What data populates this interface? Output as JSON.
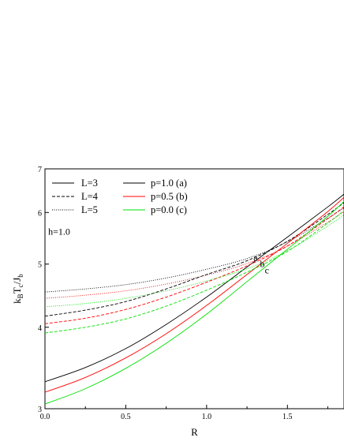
{
  "chart_data": {
    "type": "line",
    "title": "",
    "xlabel": "R",
    "ylabel": "kBTc/Jb",
    "ylabel_parts": {
      "k": "k",
      "ksub": "B",
      "t": "T",
      "tsub": "c",
      "slash": "/J",
      "jsub": "b"
    },
    "xlim": [
      0.0,
      1.85
    ],
    "ylim": [
      3,
      7
    ],
    "y_scale": "log",
    "x_ticks": [
      0.0,
      0.5,
      1.0,
      1.5
    ],
    "x_tick_labels": [
      "0.0",
      "0.5",
      "1.0",
      "1.5"
    ],
    "y_ticks": [
      3,
      4,
      5,
      6,
      7
    ],
    "y_tick_labels": [
      "3",
      "4",
      "5",
      "6",
      "7"
    ],
    "grid": false,
    "legend": {
      "placement": "top-left",
      "size_entries": [
        {
          "label": "L=3",
          "dash": "solid"
        },
        {
          "label": "L=4",
          "dash": "dashed"
        },
        {
          "label": "L=5",
          "dash": "dotted"
        }
      ],
      "p_entries": [
        {
          "label": "p=1.0 (a)",
          "color": "#000000"
        },
        {
          "label": "p=0.5 (b)",
          "color": "#ff0000"
        },
        {
          "label": "p=0.0 (c)",
          "color": "#00e000"
        }
      ]
    },
    "annotations": [
      {
        "text": "h=1.0",
        "x": 0.02,
        "y": 5.55
      },
      {
        "text": "a",
        "x": 1.29,
        "y": 5.06
      },
      {
        "text": "b",
        "x": 1.33,
        "y": 4.95
      },
      {
        "text": "c",
        "x": 1.36,
        "y": 4.84
      }
    ],
    "series": [
      {
        "L": 3,
        "p": 1.0,
        "color": "#000000",
        "dash": "solid",
        "x": [
          0.0,
          0.25,
          0.5,
          0.75,
          1.0,
          1.25,
          1.5,
          1.75,
          1.85
        ],
        "y": [
          3.3,
          3.47,
          3.71,
          4.04,
          4.45,
          4.95,
          5.5,
          6.12,
          6.4
        ]
      },
      {
        "L": 4,
        "p": 1.0,
        "color": "#000000",
        "dash": "dashed",
        "x": [
          0.0,
          0.25,
          0.5,
          0.75,
          1.0,
          1.25,
          1.5,
          1.75,
          1.85
        ],
        "y": [
          4.16,
          4.25,
          4.38,
          4.58,
          4.82,
          5.06,
          5.42,
          5.96,
          6.21
        ]
      },
      {
        "L": 5,
        "p": 1.0,
        "color": "#000000",
        "dash": "dotted",
        "x": [
          0.0,
          0.25,
          0.5,
          0.75,
          1.0,
          1.25,
          1.5,
          1.75,
          1.85
        ],
        "y": [
          4.53,
          4.58,
          4.65,
          4.76,
          4.91,
          5.1,
          5.41,
          5.88,
          6.1
        ]
      },
      {
        "L": 3,
        "p": 0.5,
        "color": "#ff0000",
        "dash": "solid",
        "x": [
          0.0,
          0.25,
          0.5,
          0.75,
          1.0,
          1.25,
          1.5,
          1.75,
          1.85
        ],
        "y": [
          3.18,
          3.35,
          3.59,
          3.91,
          4.32,
          4.82,
          5.38,
          6.02,
          6.33
        ]
      },
      {
        "L": 4,
        "p": 0.5,
        "color": "#ff0000",
        "dash": "dashed",
        "x": [
          0.0,
          0.25,
          0.5,
          0.75,
          1.0,
          1.25,
          1.5,
          1.75,
          1.85
        ],
        "y": [
          4.05,
          4.13,
          4.26,
          4.45,
          4.69,
          4.97,
          5.33,
          5.87,
          6.12
        ]
      },
      {
        "L": 5,
        "p": 0.5,
        "color": "#ff0000",
        "dash": "dotted",
        "x": [
          0.0,
          0.25,
          0.5,
          0.75,
          1.0,
          1.25,
          1.5,
          1.75,
          1.85
        ],
        "y": [
          4.43,
          4.48,
          4.55,
          4.66,
          4.81,
          5.01,
          5.33,
          5.8,
          6.02
        ]
      },
      {
        "L": 3,
        "p": 0.0,
        "color": "#00e000",
        "dash": "solid",
        "x": [
          0.0,
          0.25,
          0.5,
          0.75,
          1.0,
          1.25,
          1.5,
          1.75,
          1.85
        ],
        "y": [
          3.05,
          3.22,
          3.46,
          3.78,
          4.19,
          4.7,
          5.27,
          5.92,
          6.24
        ]
      },
      {
        "L": 4,
        "p": 0.0,
        "color": "#00e000",
        "dash": "dashed",
        "x": [
          0.0,
          0.25,
          0.5,
          0.75,
          1.0,
          1.25,
          1.5,
          1.75,
          1.85
        ],
        "y": [
          3.92,
          4.0,
          4.12,
          4.31,
          4.56,
          4.86,
          5.23,
          5.78,
          6.04
        ]
      },
      {
        "L": 5,
        "p": 0.0,
        "color": "#00e000",
        "dash": "dotted",
        "x": [
          0.0,
          0.25,
          0.5,
          0.75,
          1.0,
          1.25,
          1.5,
          1.75,
          1.85
        ],
        "y": [
          4.3,
          4.35,
          4.43,
          4.55,
          4.71,
          4.92,
          5.24,
          5.72,
          5.95
        ]
      }
    ]
  }
}
